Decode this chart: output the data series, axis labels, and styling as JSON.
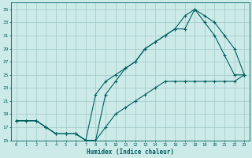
{
  "xlabel": "Humidex (Indice chaleur)",
  "xlim": [
    -0.5,
    23.5
  ],
  "ylim": [
    15,
    36
  ],
  "xticks": [
    0,
    1,
    2,
    3,
    4,
    5,
    6,
    7,
    8,
    9,
    10,
    11,
    12,
    13,
    14,
    15,
    16,
    17,
    18,
    19,
    20,
    21,
    22,
    23
  ],
  "yticks": [
    15,
    17,
    19,
    21,
    23,
    25,
    27,
    29,
    31,
    33,
    35
  ],
  "bg_color": "#cceae8",
  "line_color": "#006060",
  "curve1_x": [
    0,
    1,
    2,
    3,
    4,
    5,
    6,
    7,
    8,
    9,
    10,
    11,
    12,
    13,
    14,
    15,
    16,
    17,
    18,
    19,
    20,
    21,
    22,
    23
  ],
  "curve1_y": [
    18,
    18,
    18,
    17,
    16,
    16,
    16,
    15,
    15,
    22,
    24,
    26,
    27,
    29,
    30,
    31,
    32,
    32,
    35,
    33,
    31,
    28,
    25,
    25
  ],
  "curve2_x": [
    0,
    1,
    2,
    3,
    4,
    5,
    6,
    7,
    8,
    9,
    10,
    11,
    12,
    13,
    14,
    15,
    16,
    17,
    18,
    19,
    20,
    21,
    22,
    23
  ],
  "curve2_y": [
    18,
    18,
    18,
    17,
    16,
    16,
    16,
    15,
    22,
    24,
    25,
    26,
    27,
    29,
    30,
    31,
    32,
    34,
    35,
    34,
    33,
    31,
    29,
    25
  ],
  "curve3_x": [
    0,
    1,
    2,
    3,
    4,
    5,
    6,
    7,
    8,
    9,
    10,
    11,
    12,
    13,
    14,
    15,
    16,
    17,
    18,
    19,
    20,
    21,
    22,
    23
  ],
  "curve3_y": [
    18,
    18,
    18,
    17,
    16,
    16,
    16,
    15,
    15,
    17,
    19,
    20,
    21,
    22,
    23,
    24,
    24,
    24,
    24,
    24,
    24,
    24,
    24,
    25
  ]
}
